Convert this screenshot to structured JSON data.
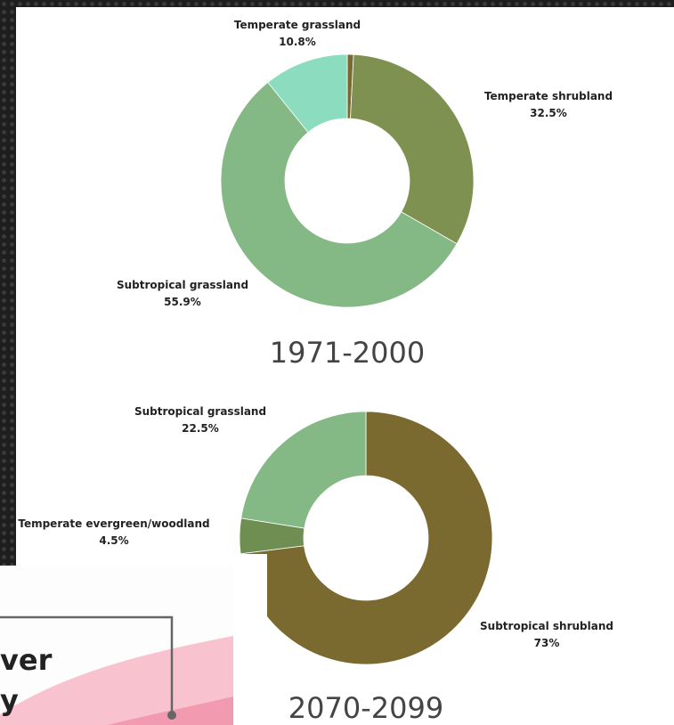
{
  "chart_data": [
    {
      "type": "donut",
      "title": "1971-2000",
      "categories": [
        null,
        "Temperate shrubland",
        "Subtropical grassland",
        "Temperate grassland"
      ],
      "values": [
        0.8,
        32.5,
        55.9,
        10.8
      ],
      "value_labels": [
        null,
        "32.5%",
        "55.9%",
        "10.8%"
      ],
      "colors": [
        "#7a6a2f",
        "#7f9150",
        "#84b885",
        "#8cdcbf"
      ]
    },
    {
      "type": "donut",
      "title": "2070-2099",
      "categories": [
        "Subtropical shrubland",
        "Temperate evergreen/woodland",
        "Subtropical grassland"
      ],
      "values": [
        73,
        4.5,
        22.5
      ],
      "value_labels": [
        "73%",
        "4.5%",
        "22.5%"
      ],
      "colors": [
        "#7a6a2f",
        "#6f8e52",
        "#84b885"
      ]
    }
  ],
  "overlay": {
    "lines": [
      "ver",
      "y"
    ]
  }
}
